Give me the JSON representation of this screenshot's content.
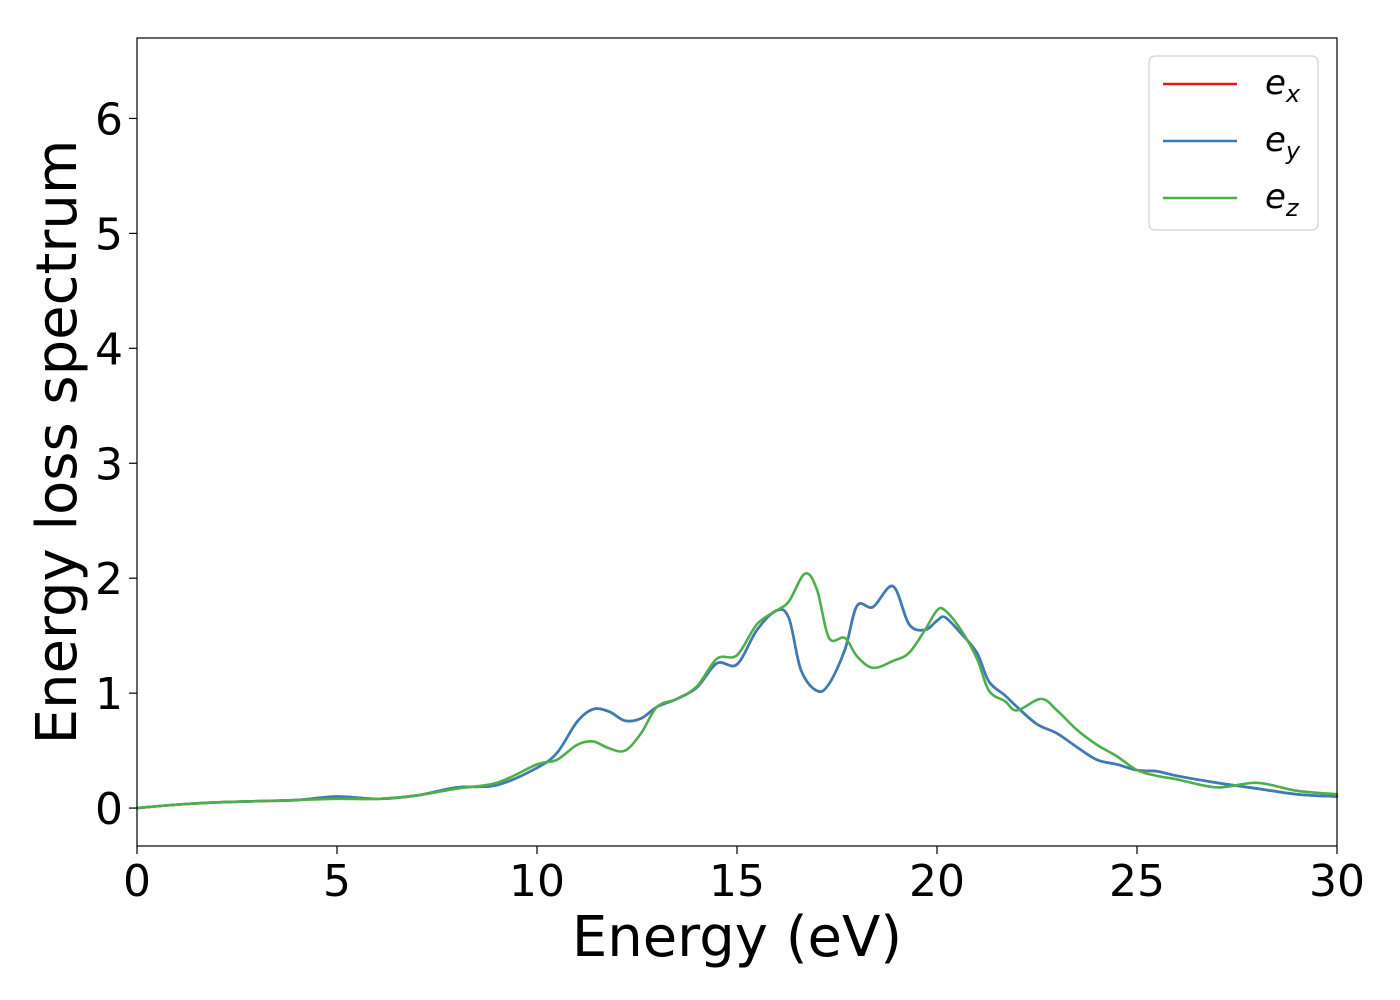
{
  "chart_data": {
    "type": "line",
    "title": "",
    "xlabel": "Energy (eV)",
    "ylabel": "Energy loss spectrum",
    "xlim": [
      0,
      30
    ],
    "ylim": [
      -0.33,
      6.7
    ],
    "xticks": [
      0,
      5,
      10,
      15,
      20,
      25,
      30
    ],
    "yticks": [
      0,
      1,
      2,
      3,
      4,
      5,
      6
    ],
    "grid": false,
    "legend": "top-right",
    "series": [
      {
        "name": "e_x",
        "label_base": "e",
        "label_sub": "x",
        "color": "#e41a1c",
        "x": [
          0,
          1,
          2,
          3,
          4,
          5,
          6,
          7,
          8,
          9,
          10,
          10.5,
          11,
          11.4,
          11.8,
          12.2,
          12.6,
          13,
          13.5,
          14,
          14.5,
          15,
          15.5,
          16,
          16.3,
          16.6,
          17,
          17.3,
          17.7,
          18,
          18.4,
          18.9,
          19.3,
          19.7,
          20,
          20.2,
          20.6,
          21,
          21.3,
          21.7,
          22,
          22.5,
          23,
          23.5,
          24,
          24.5,
          25,
          25.5,
          26,
          27,
          28,
          29,
          30
        ],
        "values": [
          0,
          0.03,
          0.05,
          0.06,
          0.07,
          0.1,
          0.08,
          0.11,
          0.18,
          0.2,
          0.35,
          0.48,
          0.75,
          0.86,
          0.84,
          0.76,
          0.78,
          0.88,
          0.95,
          1.05,
          1.26,
          1.25,
          1.55,
          1.72,
          1.65,
          1.2,
          1.02,
          1.08,
          1.38,
          1.76,
          1.75,
          1.93,
          1.6,
          1.55,
          1.63,
          1.66,
          1.52,
          1.35,
          1.1,
          0.98,
          0.88,
          0.73,
          0.65,
          0.53,
          0.42,
          0.38,
          0.33,
          0.32,
          0.28,
          0.22,
          0.17,
          0.12,
          0.1
        ]
      },
      {
        "name": "e_y",
        "label_base": "e",
        "label_sub": "y",
        "color": "#377eb8",
        "x": [
          0,
          1,
          2,
          3,
          4,
          5,
          6,
          7,
          8,
          9,
          10,
          10.5,
          11,
          11.4,
          11.8,
          12.2,
          12.6,
          13,
          13.5,
          14,
          14.5,
          15,
          15.5,
          16,
          16.3,
          16.6,
          17,
          17.3,
          17.7,
          18,
          18.4,
          18.9,
          19.3,
          19.7,
          20,
          20.2,
          20.6,
          21,
          21.3,
          21.7,
          22,
          22.5,
          23,
          23.5,
          24,
          24.5,
          25,
          25.5,
          26,
          27,
          28,
          29,
          30
        ],
        "values": [
          0,
          0.03,
          0.05,
          0.06,
          0.07,
          0.1,
          0.08,
          0.11,
          0.18,
          0.2,
          0.35,
          0.48,
          0.75,
          0.86,
          0.84,
          0.76,
          0.78,
          0.88,
          0.95,
          1.05,
          1.26,
          1.25,
          1.55,
          1.72,
          1.65,
          1.2,
          1.02,
          1.08,
          1.38,
          1.76,
          1.75,
          1.93,
          1.6,
          1.55,
          1.63,
          1.66,
          1.52,
          1.35,
          1.1,
          0.98,
          0.88,
          0.73,
          0.65,
          0.53,
          0.42,
          0.38,
          0.33,
          0.32,
          0.28,
          0.22,
          0.17,
          0.12,
          0.1
        ]
      },
      {
        "name": "e_z",
        "label_base": "e",
        "label_sub": "z",
        "color": "#4daf4a",
        "x": [
          0,
          1,
          2,
          3,
          4,
          5,
          6,
          7,
          8,
          9,
          10,
          10.5,
          11,
          11.4,
          11.8,
          12.2,
          12.6,
          13,
          13.5,
          14,
          14.5,
          15,
          15.5,
          16,
          16.3,
          16.7,
          17,
          17.3,
          17.7,
          18,
          18.4,
          18.9,
          19.3,
          19.7,
          20,
          20.2,
          20.6,
          21,
          21.3,
          21.7,
          22,
          22.6,
          23,
          23.5,
          24,
          24.5,
          25,
          25.5,
          26,
          27,
          28,
          29,
          30
        ],
        "values": [
          0,
          0.03,
          0.05,
          0.06,
          0.07,
          0.08,
          0.08,
          0.11,
          0.17,
          0.22,
          0.38,
          0.42,
          0.55,
          0.58,
          0.52,
          0.5,
          0.65,
          0.88,
          0.95,
          1.06,
          1.3,
          1.33,
          1.6,
          1.72,
          1.8,
          2.04,
          1.9,
          1.48,
          1.48,
          1.32,
          1.22,
          1.28,
          1.35,
          1.55,
          1.72,
          1.72,
          1.55,
          1.3,
          1.02,
          0.93,
          0.85,
          0.95,
          0.85,
          0.68,
          0.55,
          0.45,
          0.33,
          0.28,
          0.25,
          0.18,
          0.22,
          0.15,
          0.12
        ]
      }
    ]
  }
}
